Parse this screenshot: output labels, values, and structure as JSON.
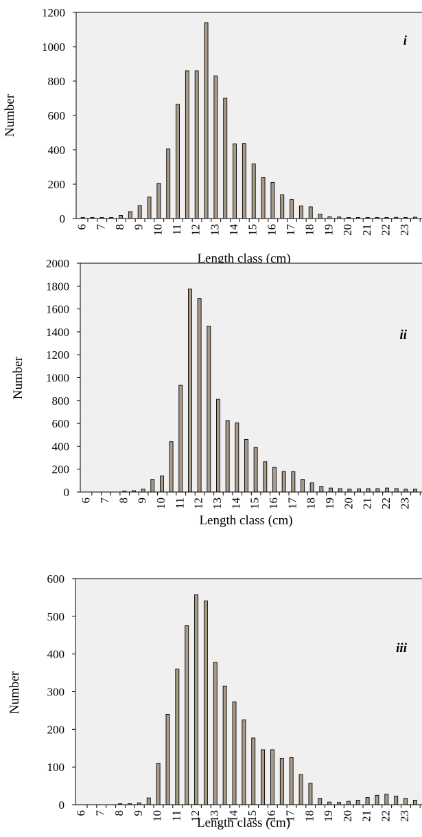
{
  "chart_data": [
    {
      "type": "bar",
      "panel_label": "i",
      "xlabel": "Length class (cm)",
      "ylabel": "Number",
      "ylim": [
        0,
        1200
      ],
      "yticks": [
        0,
        200,
        400,
        600,
        800,
        1000,
        1200
      ],
      "grid": false,
      "tick_labels": [
        "6",
        "7",
        "8",
        "9",
        "10",
        "11",
        "12",
        "13",
        "14",
        "15",
        "16",
        "17",
        "18",
        "19",
        "20",
        "21",
        "22",
        "23"
      ],
      "x": [
        6,
        6.5,
        7,
        7.5,
        8,
        8.5,
        9,
        9.5,
        10,
        10.5,
        11,
        11.5,
        12,
        12.5,
        13,
        13.5,
        14,
        14.5,
        15,
        15.5,
        16,
        16.5,
        17,
        17.5,
        18,
        18.5,
        19,
        19.5,
        20,
        20.5,
        21,
        21.5,
        22,
        22.5,
        23,
        23.5
      ],
      "values": [
        2,
        2,
        2,
        2,
        18,
        40,
        75,
        125,
        205,
        405,
        665,
        860,
        860,
        1140,
        830,
        700,
        435,
        437,
        318,
        238,
        210,
        138,
        110,
        73,
        68,
        25,
        10,
        9,
        3,
        4,
        6,
        6,
        6,
        7,
        3,
        8
      ]
    },
    {
      "type": "bar",
      "panel_label": "ii",
      "xlabel": "Length class (cm)",
      "ylabel": "Number",
      "ylim": [
        0,
        2000
      ],
      "yticks": [
        0,
        200,
        400,
        600,
        800,
        1000,
        1200,
        1400,
        1600,
        1800,
        2000
      ],
      "grid": false,
      "tick_labels": [
        "6",
        "7",
        "8",
        "9",
        "10",
        "11",
        "12",
        "13",
        "14",
        "15",
        "16",
        "17",
        "18",
        "19",
        "20",
        "21",
        "22",
        "23"
      ],
      "x": [
        6,
        6.5,
        7,
        7.5,
        8,
        8.5,
        9,
        9.5,
        10,
        10.5,
        11,
        11.5,
        12,
        12.5,
        13,
        13.5,
        14,
        14.5,
        15,
        15.5,
        16,
        16.5,
        17,
        17.5,
        18,
        18.5,
        19,
        19.5,
        20,
        20.5,
        21,
        21.5,
        22,
        22.5,
        23,
        23.5
      ],
      "values": [
        0,
        0,
        0,
        0,
        8,
        12,
        25,
        110,
        140,
        440,
        935,
        1775,
        1690,
        1450,
        810,
        625,
        605,
        460,
        390,
        265,
        215,
        180,
        178,
        110,
        80,
        50,
        35,
        30,
        25,
        28,
        30,
        30,
        35,
        30,
        25,
        25
      ]
    },
    {
      "type": "bar",
      "panel_label": "iii",
      "xlabel": "Length class (cm)",
      "ylabel": "Number",
      "ylim": [
        0,
        600
      ],
      "yticks": [
        0,
        100,
        200,
        300,
        400,
        500,
        600
      ],
      "grid": false,
      "tick_labels": [
        "6",
        "7",
        "8",
        "9",
        "10",
        "11",
        "12",
        "13",
        "14",
        "15",
        "16",
        "17",
        "18",
        "19",
        "20",
        "21",
        "22",
        "23"
      ],
      "x": [
        6,
        6.5,
        7,
        7.5,
        8,
        8.5,
        9,
        9.5,
        10,
        10.5,
        11,
        11.5,
        12,
        12.5,
        13,
        13.5,
        14,
        14.5,
        15,
        15.5,
        16,
        16.5,
        17,
        17.5,
        18,
        18.5,
        19,
        19.5,
        20,
        20.5,
        21,
        21.5,
        22,
        22.5,
        23,
        23.5
      ],
      "values": [
        0,
        0,
        0,
        0,
        2,
        2,
        5,
        18,
        110,
        240,
        360,
        475,
        557,
        541,
        378,
        315,
        273,
        225,
        177,
        146,
        146,
        123,
        125,
        80,
        57,
        17,
        7,
        6,
        9,
        12,
        19,
        25,
        28,
        23,
        17,
        12
      ]
    }
  ],
  "colors": {
    "plot_background": "#f0f0f0",
    "bar_fill": "#a99a8a",
    "bar_stroke": "#000000"
  }
}
